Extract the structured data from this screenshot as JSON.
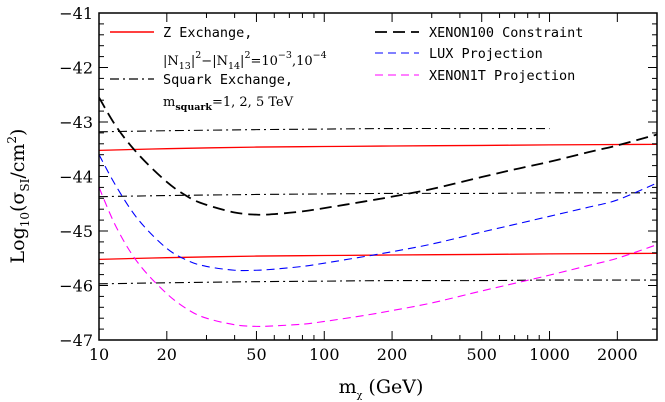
{
  "chart_data": {
    "type": "line",
    "title": "",
    "xlabel": "m",
    "xlabel_sub": "χ",
    "xlabel_unit": " (GeV)",
    "ylabel_prefix": "Log",
    "ylabel_base": "10",
    "ylabel_open": "(σ",
    "ylabel_sub": "SI",
    "ylabel_mid": "/cm",
    "ylabel_sup": "2",
    "ylabel_close": ")",
    "x_scale": "log",
    "xlim": [
      10,
      3000
    ],
    "ylim": [
      -47,
      -41
    ],
    "x_ticks": [
      10,
      20,
      50,
      100,
      200,
      500,
      1000,
      2000
    ],
    "x_tick_labels": [
      "10",
      "20",
      "50",
      "100",
      "200",
      "500",
      "1000",
      "2000"
    ],
    "y_ticks": [
      -47,
      -46,
      -45,
      -44,
      -43,
      -42,
      -41
    ],
    "y_tick_labels": [
      "−47",
      "−46",
      "−45",
      "−44",
      "−43",
      "−42",
      "−41"
    ],
    "series": [
      {
        "id": "z1",
        "name": "Z Exchange",
        "color": "#ff0000",
        "style": "solid",
        "x": [
          10,
          20,
          50,
          100,
          200,
          500,
          1000,
          3000
        ],
        "y": [
          -43.52,
          -43.49,
          -43.46,
          -43.45,
          -43.44,
          -43.43,
          -43.42,
          -43.41
        ]
      },
      {
        "id": "z2",
        "color": "#ff0000",
        "style": "solid",
        "x": [
          10,
          20,
          50,
          100,
          200,
          500,
          1000,
          3000
        ],
        "y": [
          -45.52,
          -45.49,
          -45.46,
          -45.45,
          -45.44,
          -45.43,
          -45.42,
          -45.41
        ]
      },
      {
        "id": "sq1",
        "name": "Squark Exchange",
        "color": "#000000",
        "style": "dashdot",
        "x": [
          10,
          20,
          50,
          100,
          200,
          500,
          1000
        ],
        "y": [
          -43.18,
          -43.16,
          -43.14,
          -43.13,
          -43.12,
          -43.12,
          -43.12
        ]
      },
      {
        "id": "sq2",
        "color": "#000000",
        "style": "dashdot",
        "x": [
          10,
          20,
          50,
          100,
          200,
          500,
          1000,
          2000,
          3000
        ],
        "y": [
          -44.37,
          -44.35,
          -44.33,
          -44.32,
          -44.31,
          -44.31,
          -44.3,
          -44.3,
          -44.3
        ]
      },
      {
        "id": "sq3",
        "color": "#000000",
        "style": "dashdot",
        "x": [
          10,
          20,
          50,
          100,
          200,
          500,
          1000,
          2000,
          3000
        ],
        "y": [
          -45.97,
          -45.95,
          -45.93,
          -45.92,
          -45.91,
          -45.91,
          -45.9,
          -45.9,
          -45.9
        ]
      },
      {
        "id": "xenon100",
        "name": "XENON100 Constraint",
        "color": "#000000",
        "style": "longdash",
        "x": [
          10,
          12,
          15,
          20,
          25,
          30,
          40,
          50,
          60,
          80,
          100,
          150,
          200,
          300,
          500,
          700,
          1000,
          1500,
          2000,
          3000
        ],
        "y": [
          -42.55,
          -43.1,
          -43.6,
          -44.1,
          -44.38,
          -44.52,
          -44.66,
          -44.7,
          -44.69,
          -44.64,
          -44.58,
          -44.46,
          -44.37,
          -44.23,
          -44.01,
          -43.87,
          -43.73,
          -43.55,
          -43.43,
          -43.23
        ]
      },
      {
        "id": "lux",
        "name": "LUX Projection",
        "color": "#0000ff",
        "style": "dash",
        "x": [
          10,
          12,
          15,
          20,
          25,
          30,
          40,
          50,
          60,
          80,
          100,
          150,
          200,
          300,
          500,
          700,
          1000,
          1500,
          2000,
          3000
        ],
        "y": [
          -43.6,
          -44.2,
          -44.8,
          -45.32,
          -45.55,
          -45.65,
          -45.72,
          -45.72,
          -45.7,
          -45.65,
          -45.59,
          -45.47,
          -45.38,
          -45.24,
          -45.02,
          -44.88,
          -44.73,
          -44.56,
          -44.43,
          -44.12
        ]
      },
      {
        "id": "xenon1t",
        "name": "XENON1T Projection",
        "color": "#ff00ff",
        "style": "dash",
        "x": [
          10,
          12,
          15,
          20,
          25,
          30,
          40,
          50,
          60,
          80,
          100,
          150,
          200,
          300,
          500,
          700,
          1000,
          1500,
          2000,
          3000
        ],
        "y": [
          -44.2,
          -44.95,
          -45.6,
          -46.15,
          -46.45,
          -46.6,
          -46.72,
          -46.75,
          -46.74,
          -46.71,
          -46.66,
          -46.55,
          -46.46,
          -46.32,
          -46.1,
          -45.96,
          -45.81,
          -45.63,
          -45.5,
          -45.25
        ]
      }
    ],
    "legend": {
      "z_label": "Z Exchange,",
      "z_detail": "|N13|²−|N14|²=10⁻³, 10⁻⁴",
      "z_detail_parts": [
        "|N",
        "13",
        "|",
        "2",
        "−|N",
        "14",
        "|",
        "2",
        "=10",
        "−3",
        ",10",
        "−4"
      ],
      "sq_label": "Squark Exchange,",
      "sq_detail_m": "m",
      "sq_detail_sub": "squark",
      "sq_detail_rest": "=1, 2, 5 TeV",
      "xenon100_label": "XENON100 Constraint",
      "lux_label": "LUX Projection",
      "xenon1t_label": "XENON1T Projection"
    }
  }
}
